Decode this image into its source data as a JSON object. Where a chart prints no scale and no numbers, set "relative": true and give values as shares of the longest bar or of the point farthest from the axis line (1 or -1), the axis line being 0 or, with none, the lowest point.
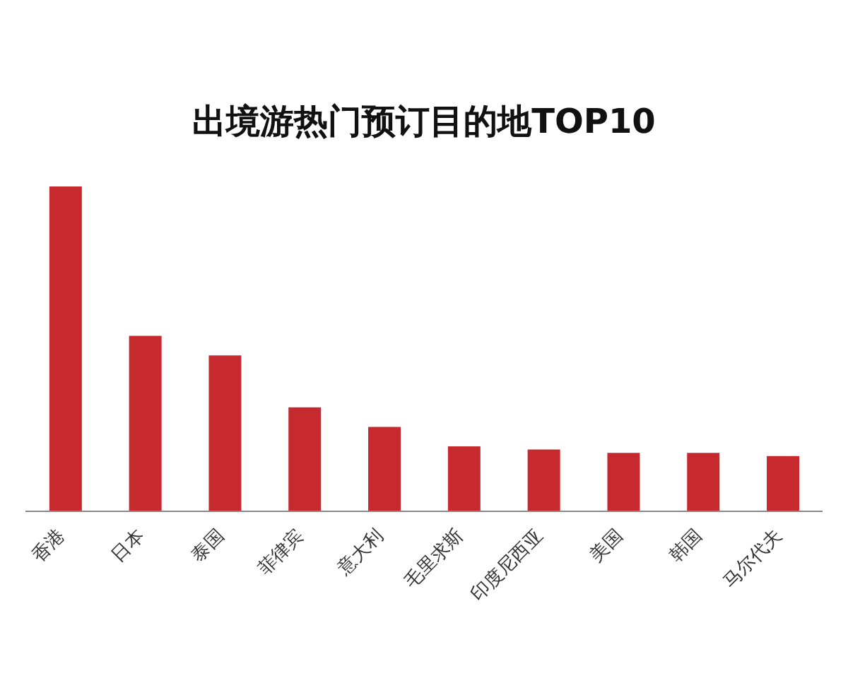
{
  "chart_data": {
    "type": "bar",
    "title": "出境游热门预订目的地TOP10",
    "categories": [
      "香港",
      "日本",
      "泰国",
      "菲律宾",
      "意大利",
      "毛里求斯",
      "印度尼西亚",
      "美国",
      "韩国",
      "马尔代夫"
    ],
    "values": [
      1,
      0.54,
      0.48,
      0.32,
      0.26,
      0.2,
      0.19,
      0.18,
      0.18,
      0.17
    ],
    "color": "#c62a2f",
    "relative": true,
    "grid": false,
    "legend": false
  }
}
